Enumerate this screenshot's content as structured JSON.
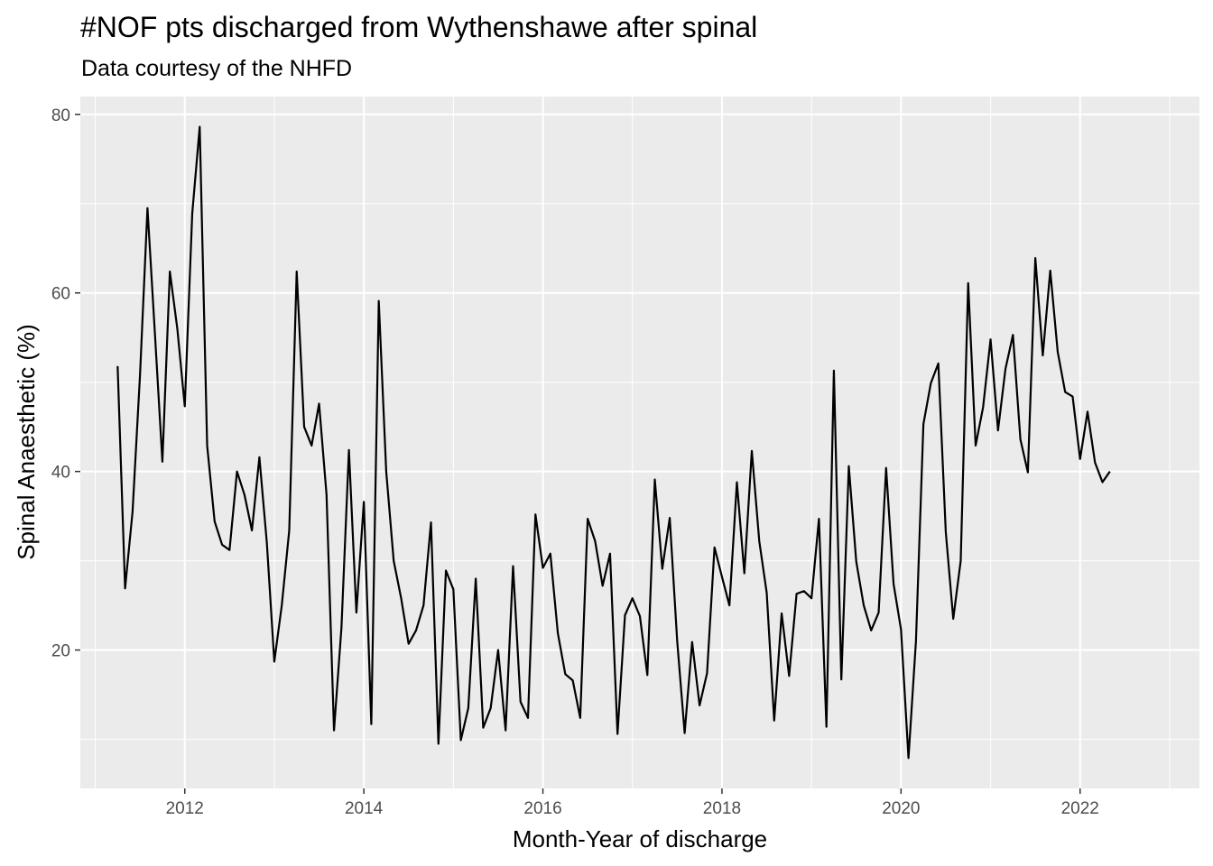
{
  "chart_data": {
    "type": "line",
    "title": "#NOF pts discharged from Wythenshawe after spinal",
    "subtitle": "Data courtesy of the NHFD",
    "xlabel": "Month-Year of discharge",
    "ylabel": "Spinal Anaesthetic (%)",
    "x_start": "2011-04",
    "x_end": "2022-05",
    "xlim": [
      "2010-11",
      "2023-05"
    ],
    "ylim": [
      4.5,
      82
    ],
    "x_ticks": [
      "2012",
      "2014",
      "2016",
      "2018",
      "2020",
      "2022"
    ],
    "y_ticks": [
      "20",
      "40",
      "60",
      "80"
    ],
    "grid": true,
    "panel_color": "#ebebeb",
    "grid_color": "#ffffff",
    "line_color": "#000000",
    "values": [
      51.8,
      26.9,
      35.5,
      50.8,
      69.5,
      55.4,
      41.1,
      62.4,
      56.0,
      47.3,
      68.9,
      78.6,
      42.9,
      34.4,
      31.8,
      31.2,
      40.0,
      37.4,
      33.4,
      41.6,
      32.0,
      18.7,
      25.0,
      33.4,
      62.4,
      45.0,
      42.9,
      47.6,
      37.4,
      11.0,
      22.5,
      42.4,
      24.2,
      36.6,
      11.7,
      59.1,
      40.0,
      30.0,
      25.8,
      20.7,
      22.2,
      25.0,
      34.3,
      9.5,
      28.9,
      26.8,
      9.9,
      13.5,
      28.0,
      11.3,
      13.5,
      20.0,
      11.0,
      29.4,
      14.2,
      12.4,
      35.2,
      29.2,
      30.8,
      21.9,
      17.3,
      16.6,
      12.4,
      34.7,
      32.2,
      27.2,
      30.8,
      10.6,
      23.9,
      25.8,
      23.8,
      17.2,
      39.1,
      29.1,
      34.8,
      21.0,
      10.7,
      20.9,
      13.8,
      17.4,
      31.5,
      28.2,
      25.0,
      38.8,
      28.6,
      42.3,
      32.2,
      26.4,
      12.1,
      24.1,
      17.1,
      26.3,
      26.6,
      25.8,
      34.7,
      11.4,
      51.3,
      16.7,
      40.6,
      29.9,
      25.0,
      22.2,
      24.2,
      40.4,
      27.4,
      22.3,
      7.9,
      21.0,
      45.3,
      49.9,
      52.1,
      33.2,
      23.5,
      30.0,
      61.1,
      42.9,
      47.2,
      54.8,
      44.6,
      51.5,
      55.3,
      43.6,
      39.9,
      63.9,
      53.0,
      62.5,
      53.4,
      48.9,
      48.4,
      41.4,
      46.7,
      41.0,
      38.8,
      40.0
    ]
  }
}
